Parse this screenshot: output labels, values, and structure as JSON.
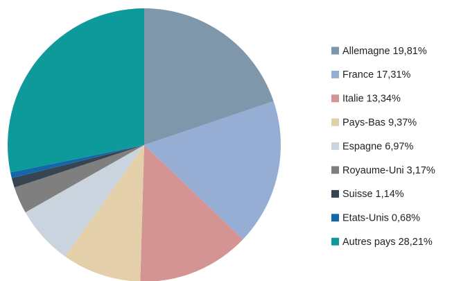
{
  "chart_data": {
    "type": "pie",
    "categories": [
      "Allemagne 19,81%",
      "France 17,31%",
      "Italie 13,34%",
      "Pays-Bas 9,37%",
      "Espagne 6,97%",
      "Royaume-Uni 3,17%",
      "Suisse 1,14%",
      "Etats-Unis 0,68%",
      "Autres pays 28,21%"
    ],
    "values": [
      19.81,
      17.31,
      13.34,
      9.37,
      6.97,
      3.17,
      1.14,
      0.68,
      28.21
    ],
    "colors": [
      "#7f97aa",
      "#97aed4",
      "#d49494",
      "#e3d0aa",
      "#c9d4de",
      "#7f7f7f",
      "#374452",
      "#1568a8",
      "#0e9a9a"
    ],
    "legend": "right"
  }
}
